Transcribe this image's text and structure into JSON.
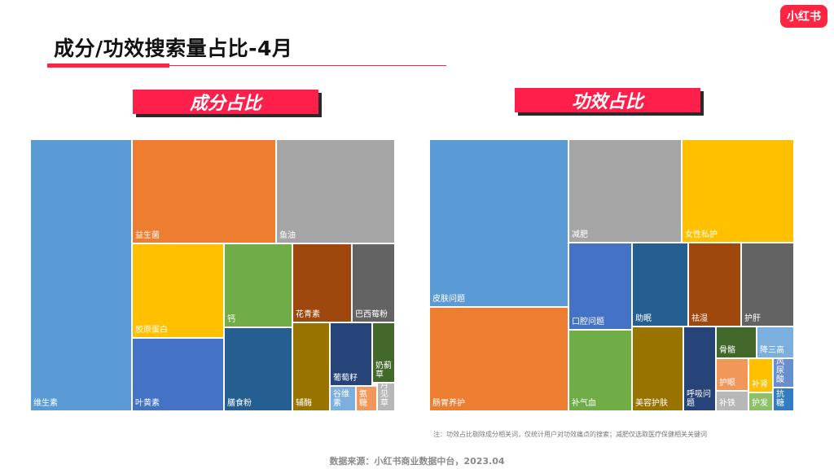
{
  "brand": {
    "logo_text": "小红书",
    "color": "#ff2442"
  },
  "page_title": "成分/功效搜索量占比-4月",
  "footer_note": "注：功效占比剔除成分相关词，仅统计用户对功效痛点的搜索；减肥仅选取医疗保健相关关键词",
  "source": "数据来源：小红书商业数据中台，2023.04",
  "chart_data": [
    {
      "type": "treemap",
      "title": "成分占比",
      "tiles": [
        {
          "label": "维生素",
          "color": "#5b9bd5"
        },
        {
          "label": "益生菌",
          "color": "#ed7d31"
        },
        {
          "label": "鱼油",
          "color": "#a5a5a5"
        },
        {
          "label": "胶原蛋白",
          "color": "#ffc000"
        },
        {
          "label": "叶黄素",
          "color": "#4472c4"
        },
        {
          "label": "钙",
          "color": "#70ad47"
        },
        {
          "label": "膳食粉",
          "color": "#255e91"
        },
        {
          "label": "花青素",
          "color": "#9e480e"
        },
        {
          "label": "巴西莓粉",
          "color": "#636363"
        },
        {
          "label": "辅酶",
          "color": "#997300"
        },
        {
          "label": "葡萄籽",
          "color": "#264478"
        },
        {
          "label": "奶蓟草",
          "color": "#43682b"
        },
        {
          "label": "谷维素",
          "color": "#7cafdd"
        },
        {
          "label": "氨糖",
          "color": "#f1975a"
        },
        {
          "label": "月见草",
          "color": "#b7b7b7"
        }
      ]
    },
    {
      "type": "treemap",
      "title": "功效占比",
      "tiles": [
        {
          "label": "皮肤问题",
          "color": "#5b9bd5"
        },
        {
          "label": "肠胃养护",
          "color": "#ed7d31"
        },
        {
          "label": "减肥",
          "color": "#a5a5a5"
        },
        {
          "label": "女性私护",
          "color": "#ffc000"
        },
        {
          "label": "口腔问题",
          "color": "#4472c4"
        },
        {
          "label": "补气血",
          "color": "#70ad47"
        },
        {
          "label": "助眠",
          "color": "#255e91"
        },
        {
          "label": "美容护肤",
          "color": "#997300"
        },
        {
          "label": "祛湿",
          "color": "#9e480e"
        },
        {
          "label": "护肝",
          "color": "#636363"
        },
        {
          "label": "呼吸问题",
          "color": "#264478"
        },
        {
          "label": "骨骼",
          "color": "#43682b"
        },
        {
          "label": "降三高",
          "color": "#7cafdd"
        },
        {
          "label": "护眼",
          "color": "#f1975a"
        },
        {
          "label": "补肾",
          "color": "#ffc000"
        },
        {
          "label": "痛风尿酸",
          "color": "#698ed0"
        },
        {
          "label": "补铁",
          "color": "#b7b7b7"
        },
        {
          "label": "护发",
          "color": "#8cc168"
        },
        {
          "label": "抗糖",
          "color": "#327dc2"
        }
      ]
    }
  ]
}
